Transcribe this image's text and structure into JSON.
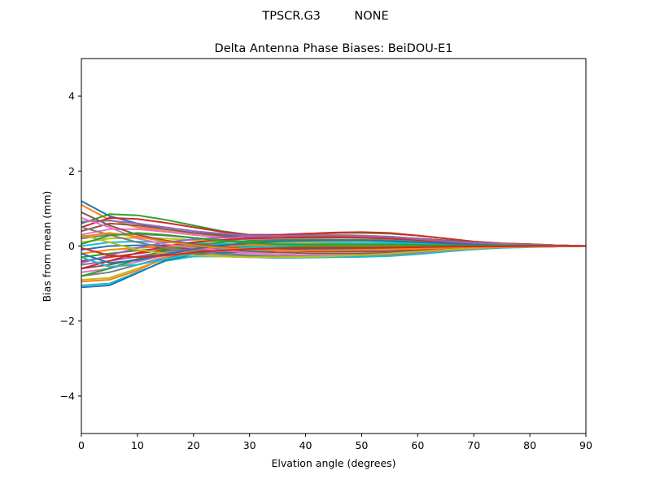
{
  "suptitle": "TPSCR.G3         NONE",
  "chart_data": {
    "type": "line",
    "title": "Delta Antenna Phase Biases: BeiDOU-E1",
    "xlabel": "Elvation angle (degrees)",
    "ylabel": "Bias from mean (mm)",
    "xlim": [
      0,
      90
    ],
    "ylim": [
      -5,
      5
    ],
    "xticks": [
      "0",
      "10",
      "20",
      "30",
      "40",
      "50",
      "60",
      "70",
      "80",
      "90"
    ],
    "yticks": [
      "−4",
      "−2",
      "0",
      "2",
      "4"
    ],
    "grid": false,
    "legend": "none",
    "x": [
      0,
      5,
      10,
      15,
      20,
      25,
      30,
      35,
      40,
      45,
      50,
      55,
      60,
      65,
      70,
      75,
      80,
      85,
      90
    ],
    "series": [
      {
        "values": [
          1.2,
          0.8,
          0.6,
          0.45,
          0.35,
          0.3,
          0.28,
          0.3,
          0.32,
          0.3,
          0.28,
          0.25,
          0.2,
          0.15,
          0.1,
          0.06,
          0.04,
          0.02,
          0.0
        ]
      },
      {
        "values": [
          1.1,
          0.7,
          0.5,
          0.4,
          0.3,
          0.25,
          0.25,
          0.27,
          0.3,
          0.3,
          0.28,
          0.25,
          0.2,
          0.15,
          0.1,
          0.06,
          0.04,
          0.02,
          0.0
        ]
      },
      {
        "values": [
          0.6,
          0.85,
          0.82,
          0.7,
          0.55,
          0.4,
          0.3,
          0.3,
          0.32,
          0.35,
          0.35,
          0.33,
          0.28,
          0.2,
          0.12,
          0.07,
          0.05,
          0.02,
          0.0
        ]
      },
      {
        "values": [
          0.5,
          0.75,
          0.72,
          0.62,
          0.5,
          0.38,
          0.3,
          0.3,
          0.33,
          0.36,
          0.37,
          0.35,
          0.28,
          0.2,
          0.12,
          0.07,
          0.05,
          0.02,
          0.0
        ]
      },
      {
        "values": [
          0.65,
          0.68,
          0.6,
          0.5,
          0.4,
          0.33,
          0.28,
          0.27,
          0.28,
          0.28,
          0.27,
          0.25,
          0.2,
          0.15,
          0.1,
          0.06,
          0.04,
          0.02,
          0.0
        ]
      },
      {
        "values": [
          0.4,
          0.6,
          0.55,
          0.45,
          0.35,
          0.28,
          0.22,
          0.22,
          0.24,
          0.26,
          0.26,
          0.24,
          0.2,
          0.15,
          0.1,
          0.06,
          0.04,
          0.02,
          0.0
        ]
      },
      {
        "values": [
          0.3,
          0.45,
          0.45,
          0.38,
          0.3,
          0.22,
          0.18,
          0.18,
          0.2,
          0.22,
          0.22,
          0.2,
          0.17,
          0.12,
          0.08,
          0.05,
          0.03,
          0.02,
          0.0
        ]
      },
      {
        "values": [
          0.2,
          0.3,
          0.32,
          0.28,
          0.22,
          0.16,
          0.12,
          0.12,
          0.14,
          0.16,
          0.17,
          0.16,
          0.14,
          0.1,
          0.07,
          0.04,
          0.03,
          0.01,
          0.0
        ]
      },
      {
        "values": [
          0.1,
          0.2,
          0.22,
          0.2,
          0.16,
          0.12,
          0.08,
          0.08,
          0.1,
          0.12,
          0.13,
          0.12,
          0.1,
          0.08,
          0.05,
          0.03,
          0.02,
          0.01,
          0.0
        ]
      },
      {
        "values": [
          0.0,
          0.1,
          0.12,
          0.1,
          0.08,
          0.06,
          0.04,
          0.05,
          0.06,
          0.08,
          0.08,
          0.08,
          0.07,
          0.05,
          0.03,
          0.02,
          0.01,
          0.0,
          0.0
        ]
      },
      {
        "values": [
          -0.1,
          0.0,
          0.02,
          0.02,
          0.02,
          0.02,
          0.02,
          0.03,
          0.04,
          0.05,
          0.05,
          0.05,
          0.04,
          0.03,
          0.02,
          0.01,
          0.01,
          0.0,
          0.0
        ]
      },
      {
        "values": [
          -0.2,
          -0.1,
          -0.05,
          -0.02,
          0.0,
          0.0,
          0.0,
          0.0,
          0.01,
          0.02,
          0.02,
          0.02,
          0.02,
          0.01,
          0.01,
          0.0,
          0.0,
          0.0,
          0.0
        ]
      },
      {
        "values": [
          -0.3,
          -0.2,
          -0.12,
          -0.06,
          -0.03,
          -0.02,
          -0.02,
          -0.02,
          -0.02,
          -0.02,
          -0.02,
          -0.02,
          -0.02,
          -0.01,
          -0.01,
          0.0,
          0.0,
          0.0,
          0.0
        ]
      },
      {
        "values": [
          -0.4,
          -0.3,
          -0.2,
          -0.1,
          -0.05,
          -0.05,
          -0.06,
          -0.07,
          -0.08,
          -0.08,
          -0.08,
          -0.07,
          -0.06,
          -0.05,
          -0.03,
          -0.02,
          -0.01,
          0.0,
          0.0
        ]
      },
      {
        "values": [
          -0.5,
          -0.4,
          -0.28,
          -0.15,
          -0.08,
          -0.08,
          -0.1,
          -0.12,
          -0.13,
          -0.14,
          -0.14,
          -0.13,
          -0.1,
          -0.07,
          -0.04,
          -0.02,
          -0.01,
          0.0,
          0.0
        ]
      },
      {
        "values": [
          -0.6,
          -0.5,
          -0.35,
          -0.2,
          -0.12,
          -0.12,
          -0.14,
          -0.17,
          -0.19,
          -0.2,
          -0.2,
          -0.18,
          -0.14,
          -0.1,
          -0.06,
          -0.03,
          -0.02,
          -0.01,
          0.0
        ]
      },
      {
        "values": [
          -0.7,
          -0.6,
          -0.42,
          -0.25,
          -0.16,
          -0.16,
          -0.19,
          -0.22,
          -0.24,
          -0.25,
          -0.25,
          -0.23,
          -0.18,
          -0.12,
          -0.07,
          -0.04,
          -0.02,
          -0.01,
          0.0
        ]
      },
      {
        "values": [
          -0.8,
          -0.7,
          -0.5,
          -0.3,
          -0.2,
          -0.2,
          -0.24,
          -0.27,
          -0.28,
          -0.28,
          -0.27,
          -0.25,
          -0.2,
          -0.13,
          -0.08,
          -0.04,
          -0.02,
          -0.01,
          0.0
        ]
      },
      {
        "values": [
          -0.9,
          -0.85,
          -0.6,
          -0.35,
          -0.25,
          -0.25,
          -0.28,
          -0.3,
          -0.3,
          -0.29,
          -0.28,
          -0.26,
          -0.21,
          -0.14,
          -0.08,
          -0.04,
          -0.02,
          -0.01,
          0.0
        ]
      },
      {
        "values": [
          -1.05,
          -1.0,
          -0.7,
          -0.4,
          -0.28,
          -0.28,
          -0.3,
          -0.32,
          -0.31,
          -0.3,
          -0.29,
          -0.27,
          -0.22,
          -0.15,
          -0.09,
          -0.05,
          -0.03,
          -0.01,
          0.0
        ]
      },
      {
        "values": [
          -1.1,
          -1.05,
          -0.72,
          -0.38,
          -0.22,
          -0.18,
          -0.15,
          -0.12,
          -0.1,
          -0.08,
          -0.07,
          -0.06,
          -0.05,
          -0.04,
          -0.03,
          -0.02,
          -0.01,
          0.0,
          0.0
        ]
      },
      {
        "values": [
          -0.95,
          -0.9,
          -0.65,
          -0.3,
          -0.1,
          -0.02,
          0.02,
          0.04,
          0.05,
          0.05,
          0.05,
          0.04,
          0.03,
          0.02,
          0.01,
          0.01,
          0.0,
          0.0,
          0.0
        ]
      },
      {
        "values": [
          -0.8,
          -0.6,
          -0.35,
          -0.12,
          0.02,
          0.1,
          0.14,
          0.16,
          0.17,
          0.17,
          0.16,
          0.14,
          0.11,
          0.07,
          0.04,
          0.02,
          0.01,
          0.0,
          0.0
        ]
      },
      {
        "values": [
          -0.6,
          -0.4,
          -0.18,
          0.0,
          0.1,
          0.16,
          0.2,
          0.22,
          0.23,
          0.23,
          0.22,
          0.2,
          0.16,
          0.1,
          0.06,
          0.03,
          0.02,
          0.01,
          0.0
        ]
      },
      {
        "values": [
          -0.45,
          -0.25,
          -0.05,
          0.1,
          0.18,
          0.22,
          0.25,
          0.27,
          0.28,
          0.28,
          0.27,
          0.24,
          0.19,
          0.13,
          0.08,
          0.04,
          0.02,
          0.01,
          0.0
        ]
      },
      {
        "values": [
          0.9,
          0.55,
          0.3,
          0.15,
          0.05,
          -0.02,
          -0.08,
          -0.12,
          -0.14,
          -0.15,
          -0.15,
          -0.14,
          -0.11,
          -0.08,
          -0.05,
          -0.03,
          -0.02,
          -0.01,
          0.0
        ]
      },
      {
        "values": [
          0.75,
          0.5,
          0.2,
          0.05,
          -0.05,
          -0.12,
          -0.18,
          -0.22,
          -0.24,
          -0.25,
          -0.25,
          -0.23,
          -0.18,
          -0.12,
          -0.07,
          -0.04,
          -0.02,
          -0.01,
          0.0
        ]
      },
      {
        "values": [
          0.5,
          0.3,
          0.1,
          -0.05,
          -0.15,
          -0.22,
          -0.26,
          -0.28,
          -0.28,
          -0.27,
          -0.25,
          -0.22,
          -0.17,
          -0.11,
          -0.07,
          -0.04,
          -0.02,
          -0.01,
          0.0
        ]
      },
      {
        "values": [
          0.3,
          0.1,
          -0.1,
          -0.2,
          -0.25,
          -0.28,
          -0.3,
          -0.3,
          -0.29,
          -0.27,
          -0.24,
          -0.2,
          -0.15,
          -0.1,
          -0.06,
          -0.03,
          -0.02,
          -0.01,
          0.0
        ]
      },
      {
        "values": [
          -0.3,
          -0.55,
          -0.5,
          -0.35,
          -0.2,
          -0.1,
          -0.04,
          0.0,
          0.03,
          0.05,
          0.06,
          0.06,
          0.05,
          0.04,
          0.02,
          0.01,
          0.01,
          0.0,
          0.0
        ]
      },
      {
        "values": [
          -0.2,
          -0.45,
          -0.38,
          -0.22,
          -0.08,
          0.02,
          0.08,
          0.12,
          0.14,
          0.15,
          0.15,
          0.13,
          0.1,
          0.07,
          0.04,
          0.02,
          0.01,
          0.0,
          0.0
        ]
      },
      {
        "values": [
          0.25,
          0.35,
          0.25,
          0.12,
          0.02,
          -0.05,
          -0.1,
          -0.12,
          -0.12,
          -0.11,
          -0.1,
          -0.09,
          -0.07,
          -0.05,
          -0.03,
          -0.02,
          -0.01,
          0.0,
          0.0
        ]
      },
      {
        "values": [
          0.05,
          0.28,
          0.35,
          0.3,
          0.22,
          0.14,
          0.08,
          0.05,
          0.04,
          0.04,
          0.04,
          0.04,
          0.03,
          0.02,
          0.01,
          0.01,
          0.0,
          0.0,
          0.0
        ]
      },
      {
        "values": [
          -0.05,
          -0.25,
          -0.3,
          -0.25,
          -0.18,
          -0.12,
          -0.08,
          -0.06,
          -0.05,
          -0.05,
          -0.05,
          -0.04,
          -0.03,
          -0.02,
          -0.01,
          -0.01,
          0.0,
          0.0,
          0.0
        ]
      }
    ]
  }
}
